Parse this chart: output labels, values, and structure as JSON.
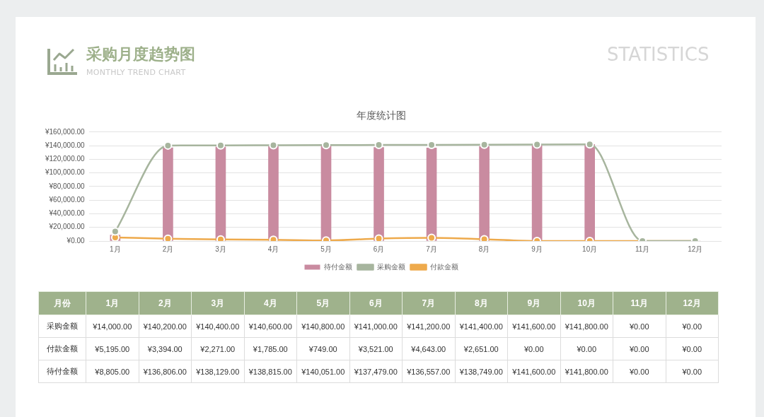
{
  "chart_data": {
    "type": "line",
    "title": "采购月度趋势图",
    "subtitle": "MONTHLY TREND CHART",
    "annotations": [
      "STATISTICS",
      "年度统计图",
      "月份"
    ],
    "categories": [
      "1月",
      "2月",
      "3月",
      "4月",
      "5月",
      "6月",
      "7月",
      "8月",
      "9月",
      "10月",
      "11月",
      "12月"
    ],
    "series": [
      {
        "name": "采购金额",
        "color": "#a7b59e",
        "values": [
          14000,
          140200,
          140400,
          140600,
          140800,
          141000,
          141200,
          141400,
          141600,
          141800,
          0,
          0
        ],
        "value_labels": [
          "¥14,000.00",
          "¥140,200.00",
          "¥140,400.00",
          "¥140,600.00",
          "¥140,800.00",
          "¥141,000.00",
          "¥141,200.00",
          "¥141,400.00",
          "¥141,600.00",
          "¥141,800.00",
          "¥0.00",
          "¥0.00"
        ]
      },
      {
        "name": "付款金额",
        "color": "#eeaa4c",
        "values": [
          5195,
          3394,
          2271,
          1785,
          749,
          3521,
          4643,
          2651,
          0,
          0,
          0,
          0
        ],
        "value_labels": [
          "¥5,195.00",
          "¥3,394.00",
          "¥2,271.00",
          "¥1,785.00",
          "¥749.00",
          "¥3,521.00",
          "¥4,643.00",
          "¥2,651.00",
          "¥0.00",
          "¥0.00",
          "¥0.00",
          "¥0.00"
        ]
      },
      {
        "name": "待付金额",
        "type": "bar",
        "color": "#c98ba0",
        "values": [
          8805,
          136806,
          138129,
          138815,
          140051,
          137479,
          136557,
          138749,
          141600,
          141800,
          0,
          0
        ],
        "value_labels": [
          "¥8,805.00",
          "¥136,806.00",
          "¥138,129.00",
          "¥138,815.00",
          "¥140,051.00",
          "¥137,479.00",
          "¥136,557.00",
          "¥138,749.00",
          "¥141,600.00",
          "¥141,800.00",
          "¥0.00",
          "¥0.00"
        ]
      }
    ],
    "ylim": [
      0,
      160000
    ],
    "yticks": [
      {
        "value": 0,
        "label": "¥0.00"
      },
      {
        "value": 20000,
        "label": "¥20,000.00"
      },
      {
        "value": 40000,
        "label": "¥40,000.00"
      },
      {
        "value": 60000,
        "label": "¥60,000.00"
      },
      {
        "value": 80000,
        "label": "¥80,000.00"
      },
      {
        "value": 100000,
        "label": "¥100,000.00"
      },
      {
        "value": 120000,
        "label": "¥120,000.00"
      },
      {
        "value": 140000,
        "label": "¥140,000.00"
      },
      {
        "value": 160000,
        "label": "¥160,000.00"
      }
    ],
    "grid": "y",
    "legend": "bottom",
    "marker": "circle",
    "line_style": "solid"
  }
}
